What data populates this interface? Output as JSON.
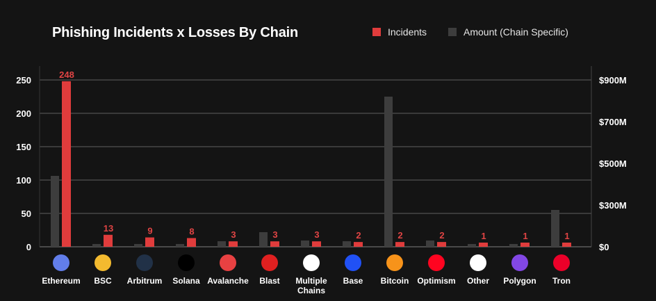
{
  "chart_data": {
    "type": "bar",
    "title": "Phishing Incidents x Losses By Chain",
    "categories": [
      "Ethereum",
      "BSC",
      "Arbitrum",
      "Solana",
      "Avalanche",
      "Blast",
      "Multiple Chains",
      "Base",
      "Bitcoin",
      "Optimism",
      "Other",
      "Polygon",
      "Tron"
    ],
    "icons": [
      "ethereum-icon",
      "bsc-icon",
      "arbitrum-icon",
      "solana-icon",
      "avalanche-icon",
      "blast-icon",
      "multiple-chains-icon",
      "base-icon",
      "bitcoin-icon",
      "optimism-icon",
      "other-icon",
      "polygon-icon",
      "tron-icon"
    ],
    "icon_colors": [
      "#627eea",
      "#f3ba2f",
      "#213147",
      "#000000",
      "#e84142",
      "#e02020",
      "#ffffff",
      "#2151f5",
      "#f7931a",
      "#ff0420",
      "#ffffff",
      "#8247e5",
      "#eb0029"
    ],
    "series": [
      {
        "name": "Amount (Chain Specific)",
        "axis": "right",
        "color": "#3d3d3d",
        "values": [
          440,
          20,
          20,
          20,
          40,
          105,
          45,
          40,
          820,
          45,
          20,
          20,
          265
        ]
      },
      {
        "name": "Incidents",
        "axis": "left",
        "color": "#e03c3c",
        "values": [
          248,
          13,
          9,
          8,
          3,
          3,
          3,
          2,
          2,
          2,
          1,
          1,
          1
        ]
      }
    ],
    "left_axis": {
      "ticks": [
        0,
        50,
        100,
        150,
        200,
        250
      ],
      "ylim": [
        0,
        250
      ]
    },
    "right_axis": {
      "ticks": [
        0,
        300,
        500,
        700,
        900
      ],
      "tick_labels": [
        "$0",
        "$300M",
        "$500M",
        "$700M",
        "$900M"
      ],
      "unit": "USD millions"
    },
    "legend": {
      "placement": "top-right",
      "items": [
        "Incidents",
        "Amount (Chain Specific)"
      ]
    },
    "grid": true
  }
}
